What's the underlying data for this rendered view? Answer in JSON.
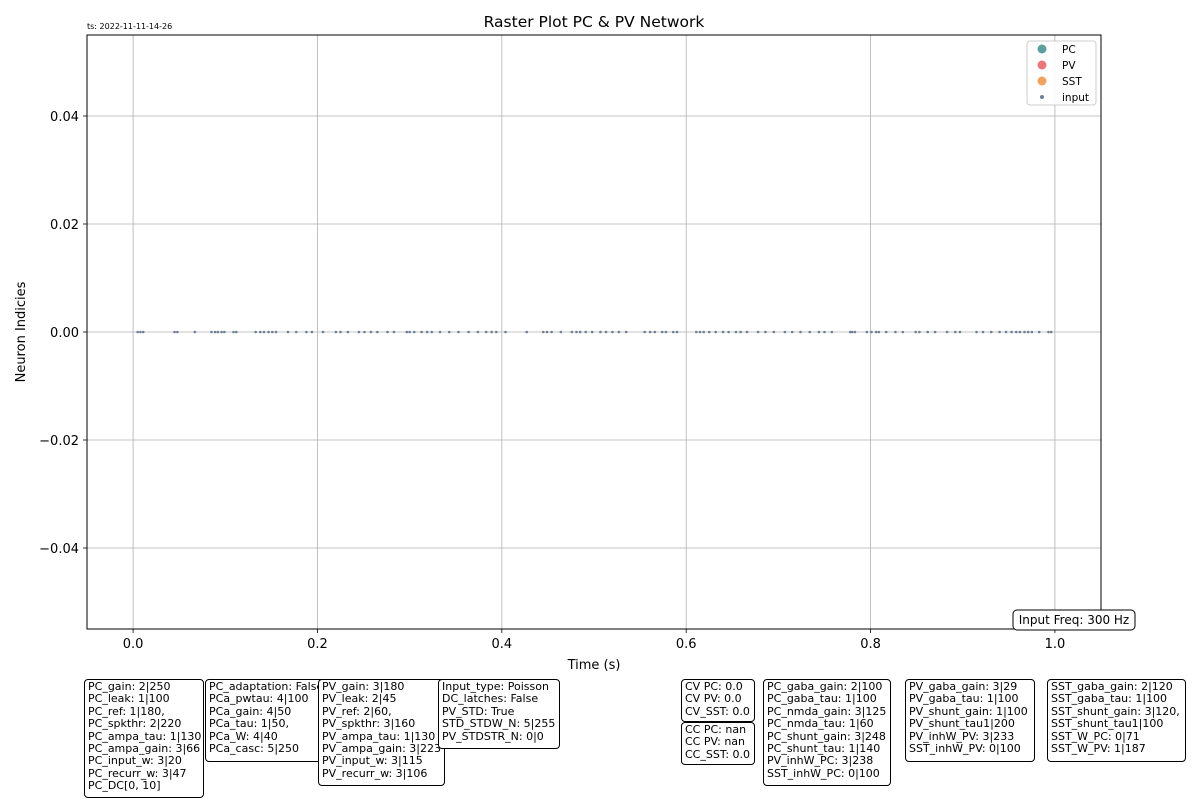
{
  "timestamp": "ts: 2022-11-11-14-26",
  "chart_data": {
    "type": "scatter",
    "title": "Raster Plot PC & PV Network",
    "xlabel": "Time (s)",
    "ylabel": "Neuron Indicies",
    "xlim": [
      -0.05,
      1.05
    ],
    "ylim": [
      -0.055,
      0.055
    ],
    "xticks": [
      0.0,
      0.2,
      0.4,
      0.6,
      0.8,
      1.0
    ],
    "xtick_labels": [
      "0.0",
      "0.2",
      "0.4",
      "0.6",
      "0.8",
      "1.0"
    ],
    "yticks": [
      0.04,
      0.02,
      0.0,
      -0.02,
      -0.04
    ],
    "ytick_labels": [
      "0.04",
      "0.02",
      "0.00",
      "−0.02",
      "−0.04"
    ],
    "grid": true,
    "legend_position": "top-right",
    "legend": [
      {
        "name": "PC",
        "color": "#5f9e9f"
      },
      {
        "name": "PV",
        "color": "#e8787a"
      },
      {
        "name": "SST",
        "color": "#f0a35e"
      },
      {
        "name": "input",
        "color": "#6b7f96"
      }
    ],
    "series": [
      {
        "name": "PC",
        "x": [],
        "y": []
      },
      {
        "name": "PV",
        "x": [],
        "y": []
      },
      {
        "name": "SST",
        "x": [],
        "y": []
      },
      {
        "name": "input",
        "y_value": 0,
        "x": [
          0.005,
          0.008,
          0.011,
          0.045,
          0.048,
          0.067,
          0.085,
          0.089,
          0.092,
          0.096,
          0.099,
          0.109,
          0.112,
          0.133,
          0.138,
          0.142,
          0.147,
          0.151,
          0.155,
          0.168,
          0.177,
          0.188,
          0.194,
          0.206,
          0.22,
          0.225,
          0.233,
          0.245,
          0.251,
          0.258,
          0.265,
          0.276,
          0.283,
          0.297,
          0.3,
          0.305,
          0.313,
          0.319,
          0.324,
          0.333,
          0.343,
          0.353,
          0.364,
          0.374,
          0.383,
          0.389,
          0.394,
          0.404,
          0.427,
          0.445,
          0.449,
          0.454,
          0.464,
          0.476,
          0.481,
          0.485,
          0.491,
          0.498,
          0.507,
          0.513,
          0.52,
          0.527,
          0.535,
          0.555,
          0.561,
          0.566,
          0.574,
          0.578,
          0.586,
          0.59,
          0.611,
          0.615,
          0.619,
          0.625,
          0.632,
          0.64,
          0.646,
          0.654,
          0.659,
          0.666,
          0.678,
          0.686,
          0.695,
          0.707,
          0.715,
          0.724,
          0.734,
          0.744,
          0.75,
          0.758,
          0.778,
          0.78,
          0.783,
          0.796,
          0.801,
          0.806,
          0.809,
          0.817,
          0.827,
          0.835,
          0.849,
          0.853,
          0.862,
          0.87,
          0.883,
          0.892,
          0.897,
          0.915,
          0.922,
          0.931,
          0.94,
          0.947,
          0.953,
          0.958,
          0.962,
          0.967,
          0.971,
          0.975,
          0.983,
          0.993,
          0.996
        ]
      }
    ]
  },
  "annotation": "Input Freq: 300 Hz",
  "param_boxes": [
    {
      "lines": [
        "PC_gain: 2|250",
        "PC_leak: 1|100",
        "PC_ref: 1|180,",
        "PC_spkthr: 2|220",
        "PC_ampa_tau: 1|130",
        "PC_ampa_gain: 3|66",
        "PC_input_w: 3|20",
        "PC_recurr_w: 3|47",
        "PC_DC[0, 10]"
      ]
    },
    {
      "lines": [
        "PC_adaptation: False",
        "PCa_pwtau: 4|100",
        "PCa_gain: 4|50",
        "PCa_tau: 1|50,",
        "PCa_W: 4|40",
        "PCa_casc: 5|250"
      ]
    },
    {
      "lines": [
        "PV_gain: 3|180",
        "PV_leak: 2|45",
        "PV_ref: 2|60,",
        "PV_spkthr: 3|160",
        "PV_ampa_tau: 1|130",
        "PV_ampa_gain: 3|223",
        "PV_input_w: 3|115",
        "PV_recurr_w: 3|106"
      ]
    },
    {
      "lines": [
        "Input_type: Poisson",
        "DC_latches: False",
        "PV_STD: True",
        "STD_STDW_N: 5|255",
        "PV_STDSTR_N: 0|0"
      ]
    },
    {
      "lines": [
        "CV PC: 0.0",
        "CV PV: 0.0",
        "CV_SST: 0.0"
      ]
    },
    {
      "lines": [
        "CC PC: nan",
        "CC PV: nan",
        "CC_SST: 0.0"
      ]
    },
    {
      "lines": [
        "PC_gaba_gain: 2|100",
        "PC_gaba_tau: 1|100",
        "PC_nmda_gain: 3|125",
        "PC_nmda_tau: 1|60",
        "PC_shunt_gain: 3|248",
        "PC_shunt_tau: 1|140",
        "PV_inhW_PC: 3|238",
        "SST_inhW_PC: 0|100"
      ]
    },
    {
      "lines": [
        "PV_gaba_gain: 3|29",
        "PV_gaba_tau: 1|100",
        "PV_shunt_gain: 1|100",
        "PV_shunt_tau1|200",
        "PV_inhW_PV: 3|233",
        "SST_inhW_PV: 0|100"
      ]
    },
    {
      "lines": [
        "SST_gaba_gain: 2|120",
        "SST_gaba_tau: 1|100",
        "SST_shunt_gain: 3|120,",
        "SST_shunt_tau1|100",
        "SST_W_PC: 0|71",
        "SST_W_PV: 1|187"
      ]
    }
  ]
}
